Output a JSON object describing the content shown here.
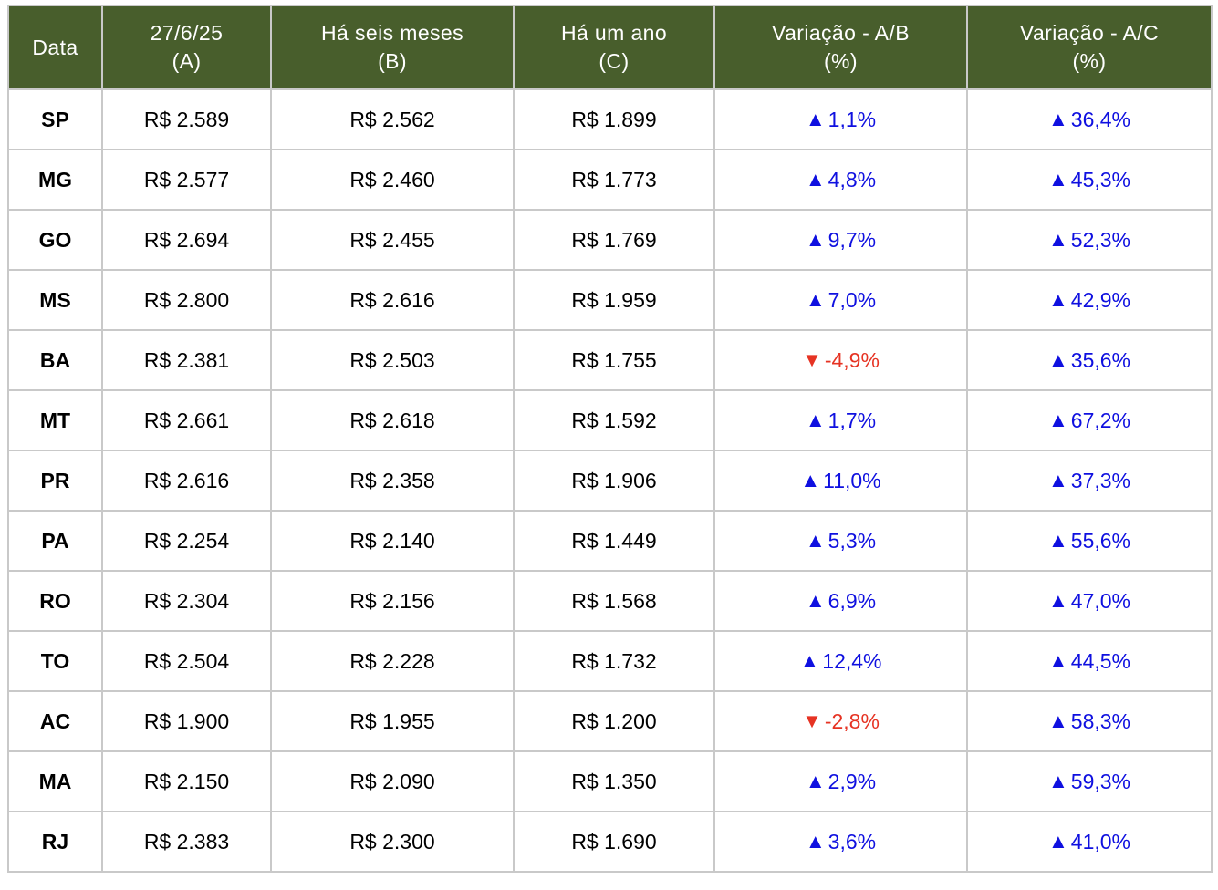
{
  "colors": {
    "header_bg": "#485e2c",
    "header_text": "#ffffff",
    "up_blue": "#0f10e0",
    "down_red": "#e63323",
    "grid_border": "#c9c9c9",
    "body_text": "#000000",
    "row_bg": "#ffffff"
  },
  "icons": {
    "up": "▲",
    "down": "▼"
  },
  "table": {
    "columns": [
      {
        "id": "state",
        "lines": [
          "Data"
        ]
      },
      {
        "id": "current",
        "lines": [
          "27/6/25",
          "(A)"
        ]
      },
      {
        "id": "six_months",
        "lines": [
          "Há seis meses",
          "(B)"
        ]
      },
      {
        "id": "one_year",
        "lines": [
          "Há um ano",
          "(C)"
        ]
      },
      {
        "id": "var_ab",
        "lines": [
          "Variação - A/B",
          "(%)"
        ]
      },
      {
        "id": "var_ac",
        "lines": [
          "Variação - A/C",
          "(%)"
        ]
      }
    ],
    "rows": [
      {
        "state": "SP",
        "current": "R$ 2.589",
        "six_months": "R$ 2.562",
        "one_year": "R$ 1.899",
        "var_ab": {
          "dir": "up",
          "text": "1,1%"
        },
        "var_ac": {
          "dir": "up",
          "text": "36,4%"
        }
      },
      {
        "state": "MG",
        "current": "R$ 2.577",
        "six_months": "R$ 2.460",
        "one_year": "R$ 1.773",
        "var_ab": {
          "dir": "up",
          "text": "4,8%"
        },
        "var_ac": {
          "dir": "up",
          "text": "45,3%"
        }
      },
      {
        "state": "GO",
        "current": "R$ 2.694",
        "six_months": "R$ 2.455",
        "one_year": "R$ 1.769",
        "var_ab": {
          "dir": "up",
          "text": "9,7%"
        },
        "var_ac": {
          "dir": "up",
          "text": "52,3%"
        }
      },
      {
        "state": "MS",
        "current": "R$ 2.800",
        "six_months": "R$ 2.616",
        "one_year": "R$ 1.959",
        "var_ab": {
          "dir": "up",
          "text": "7,0%"
        },
        "var_ac": {
          "dir": "up",
          "text": "42,9%"
        }
      },
      {
        "state": "BA",
        "current": "R$ 2.381",
        "six_months": "R$ 2.503",
        "one_year": "R$ 1.755",
        "var_ab": {
          "dir": "down",
          "text": "-4,9%"
        },
        "var_ac": {
          "dir": "up",
          "text": "35,6%"
        }
      },
      {
        "state": "MT",
        "current": "R$ 2.661",
        "six_months": "R$ 2.618",
        "one_year": "R$ 1.592",
        "var_ab": {
          "dir": "up",
          "text": "1,7%"
        },
        "var_ac": {
          "dir": "up",
          "text": "67,2%"
        }
      },
      {
        "state": "PR",
        "current": "R$ 2.616",
        "six_months": "R$ 2.358",
        "one_year": "R$ 1.906",
        "var_ab": {
          "dir": "up",
          "text": "11,0%"
        },
        "var_ac": {
          "dir": "up",
          "text": "37,3%"
        }
      },
      {
        "state": "PA",
        "current": "R$ 2.254",
        "six_months": "R$ 2.140",
        "one_year": "R$ 1.449",
        "var_ab": {
          "dir": "up",
          "text": "5,3%"
        },
        "var_ac": {
          "dir": "up",
          "text": "55,6%"
        }
      },
      {
        "state": "RO",
        "current": "R$ 2.304",
        "six_months": "R$ 2.156",
        "one_year": "R$ 1.568",
        "var_ab": {
          "dir": "up",
          "text": "6,9%"
        },
        "var_ac": {
          "dir": "up",
          "text": "47,0%"
        }
      },
      {
        "state": "TO",
        "current": "R$ 2.504",
        "six_months": "R$ 2.228",
        "one_year": "R$ 1.732",
        "var_ab": {
          "dir": "up",
          "text": "12,4%"
        },
        "var_ac": {
          "dir": "up",
          "text": "44,5%"
        }
      },
      {
        "state": "AC",
        "current": "R$ 1.900",
        "six_months": "R$ 1.955",
        "one_year": "R$ 1.200",
        "var_ab": {
          "dir": "down",
          "text": "-2,8%"
        },
        "var_ac": {
          "dir": "up",
          "text": "58,3%"
        }
      },
      {
        "state": "MA",
        "current": "R$ 2.150",
        "six_months": "R$ 2.090",
        "one_year": "R$ 1.350",
        "var_ab": {
          "dir": "up",
          "text": "2,9%"
        },
        "var_ac": {
          "dir": "up",
          "text": "59,3%"
        }
      },
      {
        "state": "RJ",
        "current": "R$ 2.383",
        "six_months": "R$ 2.300",
        "one_year": "R$ 1.690",
        "var_ab": {
          "dir": "up",
          "text": "3,6%"
        },
        "var_ac": {
          "dir": "up",
          "text": "41,0%"
        }
      }
    ]
  },
  "chart_data": {
    "type": "table",
    "title": "",
    "currency": "R$",
    "columns": [
      "Data",
      "27/6/25 (A)",
      "Há seis meses (B)",
      "Há um ano (C)",
      "Variação - A/B (%)",
      "Variação - A/C (%)"
    ],
    "rows": [
      [
        "SP",
        2589,
        2562,
        1899,
        1.1,
        36.4
      ],
      [
        "MG",
        2577,
        2460,
        1773,
        4.8,
        45.3
      ],
      [
        "GO",
        2694,
        2455,
        1769,
        9.7,
        52.3
      ],
      [
        "MS",
        2800,
        2616,
        1959,
        7.0,
        42.9
      ],
      [
        "BA",
        2381,
        2503,
        1755,
        -4.9,
        35.6
      ],
      [
        "MT",
        2661,
        2618,
        1592,
        1.7,
        67.2
      ],
      [
        "PR",
        2616,
        2358,
        1906,
        11.0,
        37.3
      ],
      [
        "PA",
        2254,
        2140,
        1449,
        5.3,
        55.6
      ],
      [
        "RO",
        2304,
        2156,
        1568,
        6.9,
        47.0
      ],
      [
        "TO",
        2504,
        2228,
        1732,
        12.4,
        44.5
      ],
      [
        "AC",
        1900,
        1955,
        1200,
        -2.8,
        58.3
      ],
      [
        "MA",
        2150,
        2090,
        1350,
        2.9,
        59.3
      ],
      [
        "RJ",
        2383,
        2300,
        1690,
        3.6,
        41.0
      ]
    ],
    "notes": "Positive variations shown in blue with up-triangle; negative variations shown in red with down-triangle."
  }
}
